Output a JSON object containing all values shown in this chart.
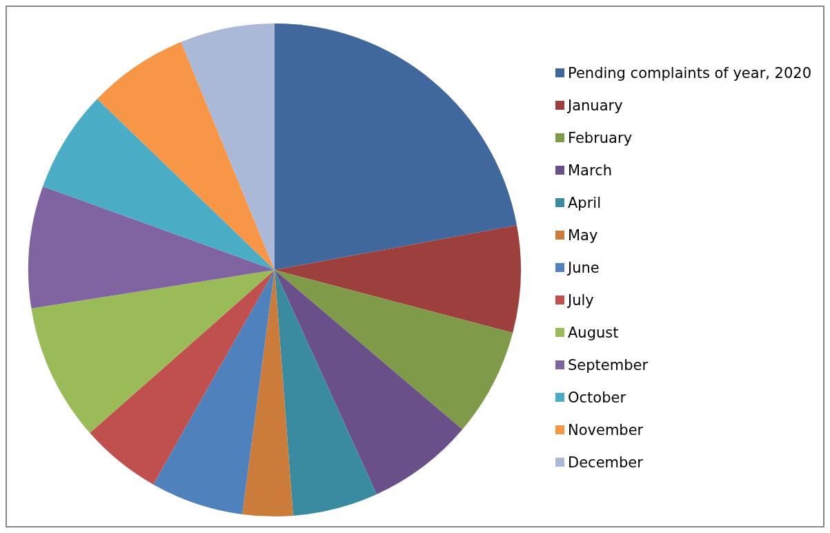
{
  "chart_data": {
    "type": "pie",
    "legend": "right",
    "categories": [
      "Pending complaints of year, 2020",
      "January",
      "February",
      "March",
      "April",
      "May",
      "June",
      "July",
      "August",
      "September",
      "October",
      "November",
      "December"
    ],
    "values": [
      22.1,
      7.0,
      7.1,
      7.0,
      5.6,
      3.3,
      6.1,
      5.3,
      9.0,
      8.0,
      6.7,
      6.6,
      6.2
    ],
    "colors": [
      "#41689c",
      "#9c3f3d",
      "#7f9a48",
      "#6a5089",
      "#3a8ba0",
      "#cc7c3a",
      "#4f81bd",
      "#c0504d",
      "#9bbb59",
      "#8064a2",
      "#4bacc6",
      "#f79646",
      "#aab9d8"
    ]
  }
}
